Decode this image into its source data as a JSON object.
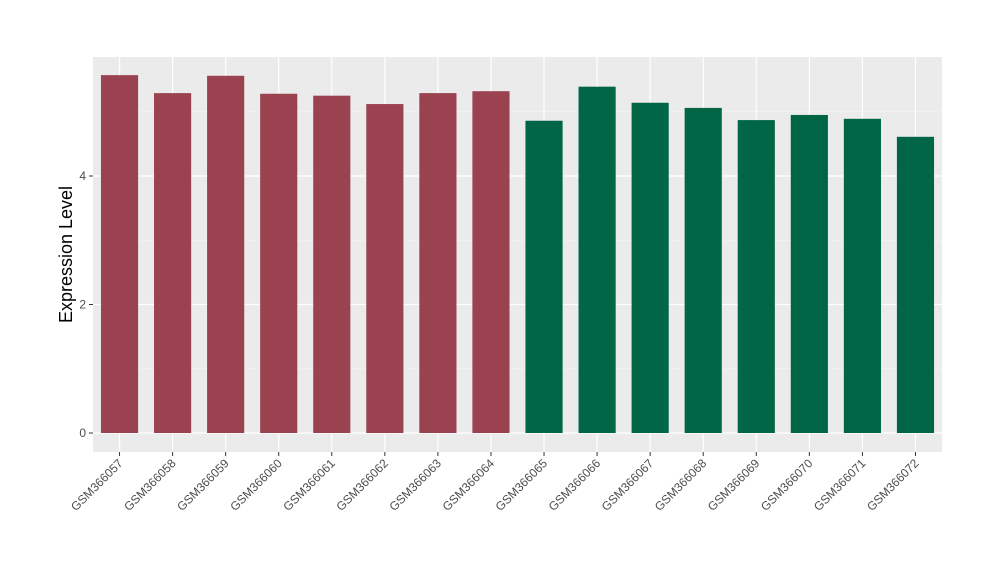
{
  "chart_data": {
    "type": "bar",
    "title": "",
    "xlabel": "",
    "ylabel": "Expression Level",
    "ylim": [
      -0.3,
      5.9
    ],
    "yticks": [
      0,
      2,
      4
    ],
    "grid": true,
    "legend": "none",
    "categories": [
      "GSM366057",
      "GSM366058",
      "GSM366059",
      "GSM366060",
      "GSM366061",
      "GSM366062",
      "GSM366063",
      "GSM366064",
      "GSM366065",
      "GSM366066",
      "GSM366067",
      "GSM366068",
      "GSM366069",
      "GSM366070",
      "GSM366071",
      "GSM366072"
    ],
    "values": [
      5.57,
      5.29,
      5.56,
      5.28,
      5.25,
      5.12,
      5.29,
      5.32,
      4.86,
      5.39,
      5.14,
      5.06,
      4.87,
      4.95,
      4.89,
      4.61
    ],
    "groups": [
      "a",
      "a",
      "a",
      "a",
      "a",
      "a",
      "a",
      "a",
      "b",
      "b",
      "b",
      "b",
      "b",
      "b",
      "b",
      "b"
    ],
    "group_colors": {
      "a": "#9b4250",
      "b": "#006645"
    }
  }
}
